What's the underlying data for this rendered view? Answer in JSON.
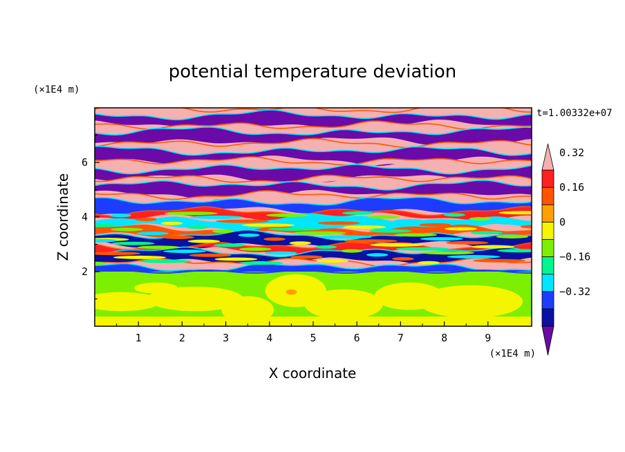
{
  "chart_data": {
    "type": "heatmap",
    "title": "potential temperature deviation",
    "time_label": "t=1.00332e+07",
    "xlabel": "X coordinate",
    "ylabel": "Z coordinate",
    "x_unit": "(×1E4 m)",
    "y_unit": "(×1E4 m)",
    "xlim": [
      0,
      10
    ],
    "ylim": [
      0,
      8
    ],
    "x_ticks": [
      "1",
      "2",
      "3",
      "4",
      "5",
      "6",
      "7",
      "8",
      "9"
    ],
    "y_ticks": [
      "2",
      "4",
      "6"
    ],
    "colorbar": {
      "levels": [
        -0.48,
        -0.4,
        -0.32,
        -0.24,
        -0.16,
        -0.08,
        0,
        0.08,
        0.16,
        0.24,
        0.32,
        0.4,
        0.48
      ],
      "tick_labels": [
        "0.32",
        "0.16",
        "0",
        "−0.16",
        "−0.32"
      ],
      "tick_values": [
        0.32,
        0.16,
        0,
        -0.16,
        -0.32
      ],
      "colors_bottom_to_top": [
        "#6a0aa8",
        "#0a10a0",
        "#1e3cff",
        "#00e6ff",
        "#00f590",
        "#7cf000",
        "#f5f500",
        "#ffa000",
        "#ff5500",
        "#ff2020",
        "#f5b0b0"
      ],
      "extend": "both"
    },
    "bands": [
      {
        "z": 7.85,
        "v": 0.5
      },
      {
        "z": 7.55,
        "v": -0.5
      },
      {
        "z": 7.25,
        "v": 0.5
      },
      {
        "z": 6.95,
        "v": -0.5
      },
      {
        "z": 6.6,
        "v": 0.5
      },
      {
        "z": 6.25,
        "v": -0.5
      },
      {
        "z": 5.95,
        "v": 0.5
      },
      {
        "z": 5.6,
        "v": -0.5
      },
      {
        "z": 5.3,
        "v": 0.5
      },
      {
        "z": 5.0,
        "v": -0.5
      },
      {
        "z": 4.7,
        "v": 0.5
      },
      {
        "z": 4.4,
        "v": -0.3
      },
      {
        "z": 4.1,
        "v": 0.4
      },
      {
        "z": 3.75,
        "v": -0.2
      },
      {
        "z": 3.45,
        "v": 0.3
      },
      {
        "z": 3.15,
        "v": -0.4
      },
      {
        "z": 2.85,
        "v": 0.4
      },
      {
        "z": 2.55,
        "v": -0.4
      },
      {
        "z": 2.25,
        "v": 0.5
      },
      {
        "z": 2.0,
        "v": -0.3
      }
    ],
    "lower_region": {
      "z_top": 2.0,
      "v_background": 0.02,
      "v_blobs": 0.06
    }
  }
}
